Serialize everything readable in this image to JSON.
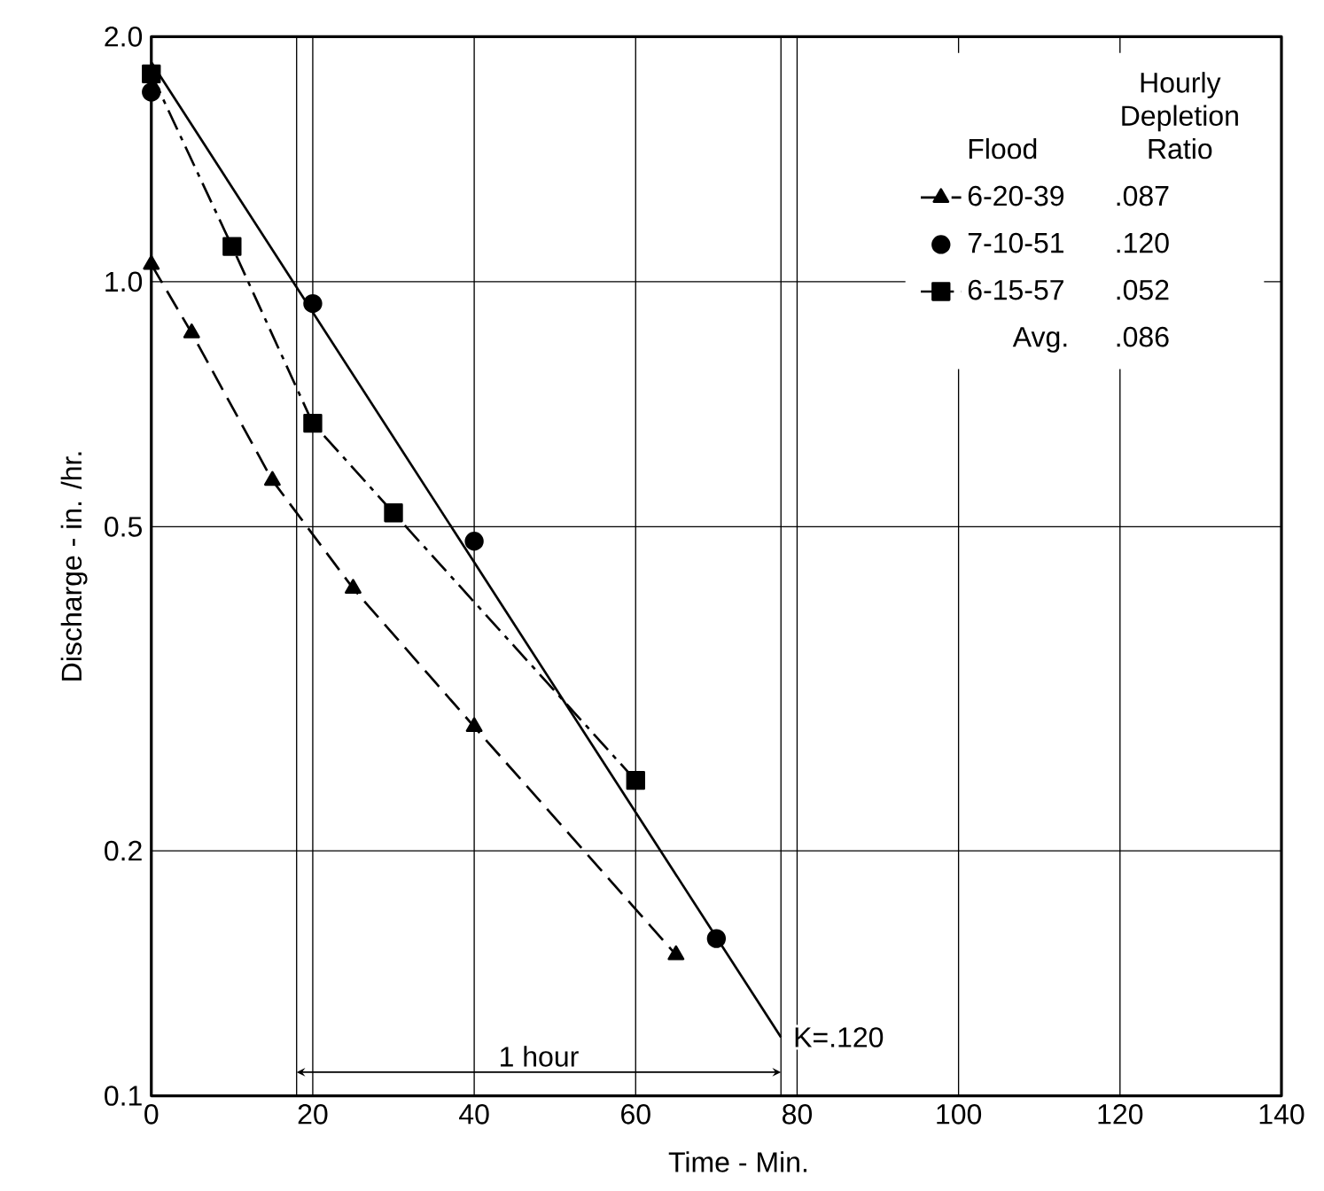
{
  "chart_data": {
    "type": "line",
    "xlabel": "Time -  Min.",
    "ylabel": "Discharge -   in. /hr.",
    "legend_title": "Flood",
    "series": [
      {
        "name": "6-20-39",
        "color": "#000000",
        "marker": "triangle",
        "line_style": "dashed",
        "x": [
          0,
          5,
          15,
          25,
          40,
          65
        ],
        "values": [
          1.05,
          0.865,
          0.57,
          0.42,
          0.284,
          0.149
        ]
      },
      {
        "name": "7-10-51",
        "color": "#000000",
        "type": "scatter",
        "marker": "circle",
        "x": [
          0,
          20,
          40,
          70
        ],
        "values": [
          1.71,
          0.94,
          0.48,
          0.156
        ]
      },
      {
        "name": "6-15-57",
        "color": "#000000",
        "marker": "square",
        "line_style": "dashdot",
        "x": [
          0,
          10,
          20,
          30,
          60
        ],
        "values": [
          1.8,
          1.105,
          0.67,
          0.52,
          0.244
        ]
      },
      {
        "color": "#000000",
        "marker": "none",
        "line_style": "solid",
        "x": [
          0,
          78
        ],
        "values": [
          1.86,
          0.118
        ]
      }
    ],
    "xlim": [
      0,
      140
    ],
    "ylim": [
      0.1,
      2
    ],
    "xticks": [
      0,
      20,
      40,
      60,
      80,
      100,
      120,
      140
    ],
    "yticks": [
      0.1,
      0.2,
      0.5,
      {
        "value": 1,
        "label": "1.0"
      },
      {
        "value": 2,
        "label": "2.0"
      }
    ],
    "log": "y",
    "grid": true,
    "legend": "top right",
    "ref_lines": [
      {
        "axis": "x",
        "value": 18
      },
      {
        "axis": "x",
        "value": 78
      }
    ],
    "annotations": [
      "Hourly Depletion Ratio",
      ".087",
      ".120",
      ".052",
      "Avg.",
      ".086",
      "1 hour",
      {
        "text": "K=.120",
        "x": 78,
        "y": 0.118
      }
    ]
  }
}
